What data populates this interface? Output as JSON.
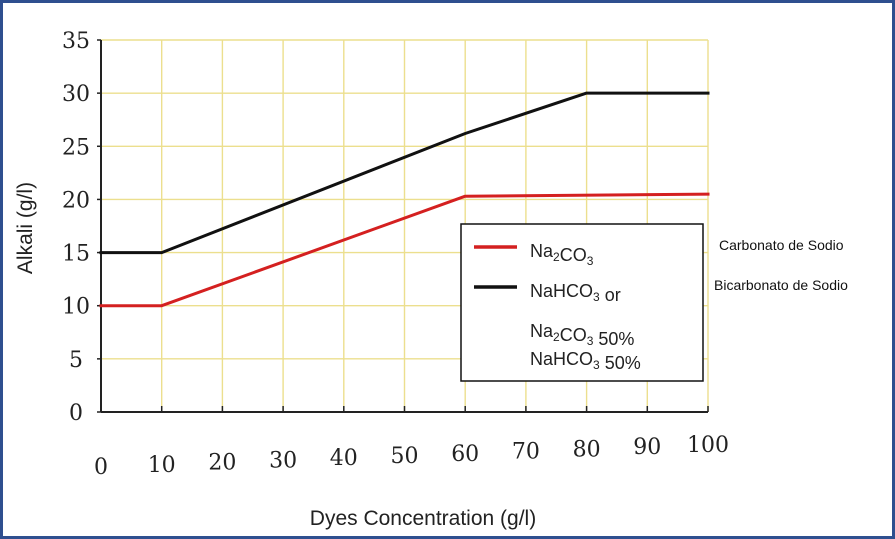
{
  "chart_data": {
    "type": "line",
    "xlabel": "Dyes Concentration (g/l)",
    "ylabel": "Alkali (g/l)",
    "xlim": [
      0,
      100
    ],
    "ylim": [
      0,
      35
    ],
    "xticks": [
      "0",
      "10",
      "20",
      "30",
      "40",
      "50",
      "60",
      "70",
      "80",
      "90",
      "100"
    ],
    "yticks": [
      "0",
      "5",
      "10",
      "15",
      "20",
      "25",
      "30",
      "35"
    ],
    "grid": true,
    "legend_position": "center-right",
    "series": [
      {
        "id": "na2co3",
        "color": "#d42020",
        "x": [
          0,
          10,
          60,
          100
        ],
        "y": [
          10,
          10,
          20.3,
          20.5
        ]
      },
      {
        "id": "nahco3",
        "color": "#111111",
        "x": [
          0,
          10,
          60,
          80,
          100
        ],
        "y": [
          15,
          15,
          26.2,
          30,
          30
        ]
      }
    ],
    "legend": [
      {
        "series": "na2co3",
        "lines": [
          [
            {
              "t": "Na"
            },
            {
              "t": "2",
              "sub": true
            },
            {
              "t": "CO"
            },
            {
              "t": "3",
              "sub": true
            }
          ]
        ]
      },
      {
        "series": "nahco3",
        "lines": [
          [
            {
              "t": "NaHCO"
            },
            {
              "t": "3",
              "sub": true
            },
            {
              "t": " or"
            }
          ],
          [
            {
              "t": "Na"
            },
            {
              "t": "2",
              "sub": true
            },
            {
              "t": "CO"
            },
            {
              "t": "3",
              "sub": true
            },
            {
              "t": " 50%"
            }
          ],
          [
            {
              "t": "NaHCO"
            },
            {
              "t": "3",
              "sub": true
            },
            {
              "t": " 50%"
            }
          ]
        ]
      }
    ],
    "annotations": [
      "Carbonato de Sodio",
      "Bicarbonato de Sodio"
    ],
    "colors": {
      "grid": "#ecdf8e",
      "axis": "#222222",
      "frame": "#2f4f8f"
    }
  }
}
